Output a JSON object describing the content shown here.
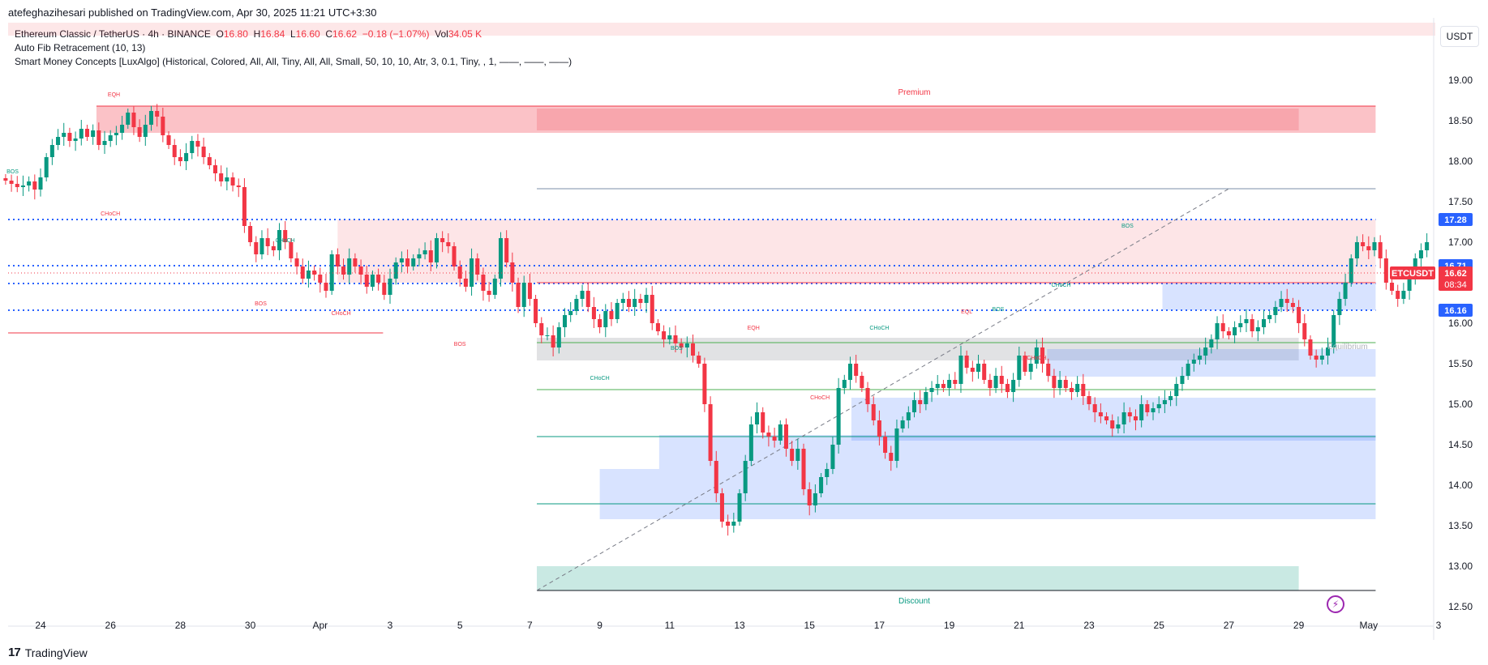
{
  "header": {
    "published_by": "atefeghazihesari published on TradingView.com, Apr 30, 2025 11:21 UTC+3:30"
  },
  "legend": {
    "symbol_line": {
      "title": "Ethereum Classic / TetherUS · 4h · BINANCE",
      "o_label": "O",
      "o_val": "16.80",
      "h_label": "H",
      "h_val": "16.84",
      "l_label": "L",
      "l_val": "16.60",
      "c_label": "C",
      "c_val": "16.62",
      "change": "−0.18 (−1.07%)",
      "vol_label": "Vol",
      "vol_val": "34.05 K"
    },
    "indicators": [
      "Auto Fib Retracement (10, 13)",
      "Smart Money Concepts [LuxAlgo] (Historical, Colored, All, All, Tiny, All, All, Small, 50, 10, 10, Atr, 3, 0.1, Tiny, , 1, ——, ——, ——)"
    ]
  },
  "currency": "USDT",
  "footer": {
    "brand": "TradingView",
    "logo": "17"
  },
  "colors": {
    "up": "#089981",
    "down": "#f23645",
    "blue": "#2962ff",
    "premium": "#f23645",
    "discount": "#089981"
  },
  "chart_data": {
    "type": "candlestick",
    "ylim": [
      12.5,
      19.35
    ],
    "y_ticks": [
      "19.00",
      "18.50",
      "18.00",
      "17.50",
      "17.00",
      "16.50",
      "16.00",
      "15.50",
      "15.00",
      "14.50",
      "14.00",
      "13.50",
      "13.00",
      "12.50"
    ],
    "x_ticks": [
      {
        "label": "24",
        "day": 0
      },
      {
        "label": "26",
        "day": 2
      },
      {
        "label": "28",
        "day": 4
      },
      {
        "label": "30",
        "day": 6
      },
      {
        "label": "Apr",
        "day": 8
      },
      {
        "label": "3",
        "day": 10
      },
      {
        "label": "5",
        "day": 12
      },
      {
        "label": "7",
        "day": 14
      },
      {
        "label": "9",
        "day": 16
      },
      {
        "label": "11",
        "day": 18
      },
      {
        "label": "13",
        "day": 20
      },
      {
        "label": "15",
        "day": 22
      },
      {
        "label": "17",
        "day": 24
      },
      {
        "label": "19",
        "day": 26
      },
      {
        "label": "21",
        "day": 28
      },
      {
        "label": "23",
        "day": 30
      },
      {
        "label": "25",
        "day": 32
      },
      {
        "label": "27",
        "day": 34
      },
      {
        "label": "29",
        "day": 36
      },
      {
        "label": "May",
        "day": 38
      },
      {
        "label": "3",
        "day": 40
      }
    ],
    "price_badges": [
      {
        "label": "17.28",
        "value": 17.28,
        "color": "#2962ff"
      },
      {
        "label": "16.71",
        "value": 16.71,
        "color": "#2962ff"
      },
      {
        "label": "16.49",
        "value": 16.49,
        "color": "#2962ff"
      },
      {
        "label": "16.16",
        "value": 16.16,
        "color": "#2962ff"
      }
    ],
    "last_price": {
      "symbol": "ETCUSDT",
      "price": "16.62",
      "countdown": "08:34",
      "value": 16.62
    },
    "zones": [
      {
        "name": "premium-zone",
        "y1": 18.35,
        "y2": 18.68,
        "d1": 1.6,
        "d2": 38.2,
        "color": "#f23645",
        "opacity": 0.3
      },
      {
        "name": "premium-zone-inner",
        "y1": 18.38,
        "y2": 18.65,
        "d1": 14.2,
        "d2": 36.0,
        "color": "#f23645",
        "opacity": 0.2
      },
      {
        "name": "supply-zone",
        "y1": 16.5,
        "y2": 17.28,
        "d1": 8.5,
        "d2": 38.2,
        "color": "#f23645",
        "opacity": 0.13
      },
      {
        "name": "equilibrium-zone",
        "y1": 15.54,
        "y2": 15.82,
        "d1": 14.2,
        "d2": 36.0,
        "color": "#787b86",
        "opacity": 0.22
      },
      {
        "name": "discount-zone",
        "y1": 12.7,
        "y2": 13.0,
        "d1": 14.2,
        "d2": 36.0,
        "color": "#089981",
        "opacity": 0.22
      },
      {
        "name": "demand-zone-1",
        "y1": 13.58,
        "y2": 14.2,
        "d1": 16.0,
        "d2": 38.2,
        "color": "#2962ff",
        "opacity": 0.18
      },
      {
        "name": "demand-zone-2",
        "y1": 14.2,
        "y2": 14.62,
        "d1": 17.7,
        "d2": 38.2,
        "color": "#2962ff",
        "opacity": 0.18
      },
      {
        "name": "demand-zone-3",
        "y1": 14.55,
        "y2": 15.08,
        "d1": 23.2,
        "d2": 38.2,
        "color": "#2962ff",
        "opacity": 0.18
      },
      {
        "name": "demand-zone-4",
        "y1": 15.34,
        "y2": 15.68,
        "d1": 28.8,
        "d2": 38.2,
        "color": "#2962ff",
        "opacity": 0.18
      },
      {
        "name": "demand-zone-5",
        "y1": 16.16,
        "y2": 16.49,
        "d1": 32.1,
        "d2": 38.2,
        "color": "#2962ff",
        "opacity": 0.18
      }
    ],
    "levels": [
      {
        "name": "fib-top-line",
        "value": 18.68,
        "d1": 1.6,
        "d2": 38.2,
        "color": "#f23645",
        "style": "solid"
      },
      {
        "name": "fib-high-line",
        "value": 17.66,
        "d1": 14.2,
        "d2": 38.2,
        "color": "#7b8fa8",
        "style": "solid"
      },
      {
        "name": "level-1728",
        "value": 17.28,
        "d1": -1,
        "d2": 38.2,
        "color": "#2962ff",
        "style": "dotted"
      },
      {
        "name": "level-1671",
        "value": 16.71,
        "d1": -1,
        "d2": 38.2,
        "color": "#2962ff",
        "style": "dotted"
      },
      {
        "name": "level-1649",
        "value": 16.49,
        "d1": -1,
        "d2": 38.2,
        "color": "#2962ff",
        "style": "dotted"
      },
      {
        "name": "level-1616",
        "value": 16.16,
        "d1": -1,
        "d2": 38.2,
        "color": "#2962ff",
        "style": "dotted"
      },
      {
        "name": "red-level",
        "value": 16.5,
        "d1": 14.2,
        "d2": 38.2,
        "color": "#f23645",
        "style": "solid"
      },
      {
        "name": "old-red-level",
        "value": 15.88,
        "d1": -1,
        "d2": 9.8,
        "color": "#f23645",
        "style": "solid"
      },
      {
        "name": "green-level-1",
        "value": 15.76,
        "d1": 14.2,
        "d2": 38.2,
        "color": "#4caf50",
        "style": "solid"
      },
      {
        "name": "green-level-2",
        "value": 15.18,
        "d1": 14.2,
        "d2": 38.2,
        "color": "#4caf50",
        "style": "solid"
      },
      {
        "name": "teal-level-1",
        "value": 14.6,
        "d1": 14.2,
        "d2": 38.2,
        "color": "#089981",
        "style": "solid"
      },
      {
        "name": "teal-level-2",
        "value": 13.77,
        "d1": 14.2,
        "d2": 38.2,
        "color": "#089981",
        "style": "solid"
      },
      {
        "name": "fib-bottom-line",
        "value": 12.7,
        "d1": 14.2,
        "d2": 38.2,
        "color": "#131722",
        "style": "solid"
      }
    ],
    "trend_line": {
      "d1": 14.2,
      "v1": 12.7,
      "d2": 34.0,
      "v2": 17.66
    },
    "structure_labels": [
      {
        "text": "EQH",
        "day": 2.1,
        "value": 18.8,
        "color": "#f23645"
      },
      {
        "text": "BOS",
        "day": -0.8,
        "value": 17.85,
        "color": "#089981"
      },
      {
        "text": "CHoCH",
        "day": 2.0,
        "value": 17.33,
        "color": "#f23645"
      },
      {
        "text": "CHoCH",
        "day": 7.0,
        "value": 17.0,
        "color": "#089981"
      },
      {
        "text": "BOS",
        "day": 6.3,
        "value": 16.22,
        "color": "#f23645"
      },
      {
        "text": "CHoCH",
        "day": 8.6,
        "value": 16.1,
        "color": "#f23645"
      },
      {
        "text": "BOS",
        "day": 12.0,
        "value": 15.72,
        "color": "#f23645"
      },
      {
        "text": "EQH",
        "day": 20.4,
        "value": 15.92,
        "color": "#f23645"
      },
      {
        "text": "CHoCH",
        "day": 24.0,
        "value": 15.92,
        "color": "#089981"
      },
      {
        "text": "BOS",
        "day": 18.2,
        "value": 15.67,
        "color": "#089981"
      },
      {
        "text": "CHoCH",
        "day": 16.0,
        "value": 15.3,
        "color": "#089981"
      },
      {
        "text": "CHoCH",
        "day": 22.3,
        "value": 15.06,
        "color": "#f23645"
      },
      {
        "text": "EQL",
        "day": 26.5,
        "value": 16.12,
        "color": "#f23645"
      },
      {
        "text": "BOS",
        "day": 27.4,
        "value": 16.15,
        "color": "#089981"
      },
      {
        "text": "CHoCH",
        "day": 28.5,
        "value": 15.55,
        "color": "#f23645"
      },
      {
        "text": "CHoCH",
        "day": 29.2,
        "value": 16.45,
        "color": "#089981"
      },
      {
        "text": "BOS",
        "day": 31.1,
        "value": 17.18,
        "color": "#089981"
      }
    ],
    "zone_labels": [
      {
        "text": "Premium",
        "day": 25.0,
        "value": 18.82,
        "color": "#f23645"
      },
      {
        "text": "Equilibrium",
        "day": 37.4,
        "value": 15.68,
        "color": "#b2b5be"
      },
      {
        "text": "Discount",
        "day": 25.0,
        "value": 12.54,
        "color": "#089981"
      }
    ],
    "candles_per_day": 6,
    "closes": [
      17.76,
      17.72,
      17.68,
      17.7,
      17.75,
      17.65,
      17.8,
      18.05,
      18.2,
      18.3,
      18.35,
      18.25,
      18.28,
      18.4,
      18.3,
      18.38,
      18.2,
      18.25,
      18.32,
      18.35,
      18.45,
      18.6,
      18.42,
      18.3,
      18.45,
      18.62,
      18.55,
      18.32,
      18.2,
      18.05,
      18.0,
      18.1,
      18.25,
      18.18,
      18.05,
      17.95,
      17.85,
      17.75,
      17.8,
      17.7,
      17.68,
      17.2,
      17.0,
      16.85,
      17.05,
      16.95,
      16.9,
      17.15,
      17.0,
      16.8,
      16.7,
      16.55,
      16.65,
      16.6,
      16.5,
      16.4,
      16.85,
      16.7,
      16.6,
      16.8,
      16.7,
      16.6,
      16.45,
      16.6,
      16.5,
      16.35,
      16.55,
      16.75,
      16.8,
      16.7,
      16.8,
      16.85,
      16.9,
      16.75,
      17.05,
      17.0,
      16.95,
      16.7,
      16.55,
      16.45,
      16.8,
      16.6,
      16.4,
      16.35,
      16.55,
      17.05,
      16.75,
      16.5,
      16.2,
      16.5,
      16.3,
      16.0,
      15.85,
      15.85,
      15.7,
      15.95,
      16.1,
      16.15,
      16.3,
      16.4,
      16.2,
      16.05,
      15.95,
      16.15,
      16.05,
      16.25,
      16.3,
      16.2,
      16.3,
      16.25,
      16.35,
      16.0,
      15.9,
      15.8,
      15.85,
      15.75,
      15.7,
      15.75,
      15.6,
      15.5,
      15.0,
      14.3,
      13.9,
      13.55,
      13.5,
      13.55,
      13.9,
      14.3,
      14.75,
      14.9,
      14.65,
      14.6,
      14.55,
      14.75,
      14.45,
      14.3,
      14.45,
      13.95,
      13.75,
      13.9,
      14.1,
      14.2,
      14.5,
      15.2,
      15.3,
      15.5,
      15.35,
      15.2,
      15.0,
      14.8,
      14.6,
      14.4,
      14.3,
      14.7,
      14.8,
      14.9,
      15.05,
      15.0,
      15.15,
      15.2,
      15.25,
      15.2,
      15.3,
      15.25,
      15.6,
      15.45,
      15.4,
      15.5,
      15.3,
      15.2,
      15.35,
      15.25,
      15.15,
      15.3,
      15.6,
      15.4,
      15.5,
      15.7,
      15.5,
      15.35,
      15.2,
      15.3,
      15.2,
      15.15,
      15.25,
      15.1,
      15.0,
      14.9,
      14.85,
      14.8,
      14.7,
      14.75,
      14.9,
      14.85,
      14.8,
      15.0,
      14.9,
      14.95,
      15.0,
      15.05,
      15.1,
      15.25,
      15.35,
      15.5,
      15.55,
      15.6,
      15.7,
      15.8,
      16.0,
      15.9,
      15.85,
      15.95,
      16.0,
      16.05,
      15.9,
      15.95,
      16.05,
      16.1,
      16.2,
      16.3,
      16.25,
      16.2,
      16.0,
      15.8,
      15.6,
      15.55,
      15.6,
      15.7,
      16.1,
      16.3,
      16.5,
      16.8,
      17.0,
      16.95,
      16.9,
      17.0,
      16.8,
      16.5,
      16.4,
      16.3,
      16.4,
      16.55,
      16.8,
      16.9,
      17.0,
      17.1,
      17.2,
      17.25,
      17.3,
      17.25,
      17.3,
      17.15,
      17.1,
      16.9,
      17.05,
      17.0,
      17.2,
      17.05,
      16.95,
      16.85,
      16.6,
      16.5,
      16.7,
      16.8,
      16.6,
      16.55,
      16.8,
      17.0,
      16.9,
      17.1,
      17.05,
      17.2,
      17.3,
      17.25,
      17.15,
      17.05,
      16.9,
      16.75,
      16.62
    ]
  }
}
